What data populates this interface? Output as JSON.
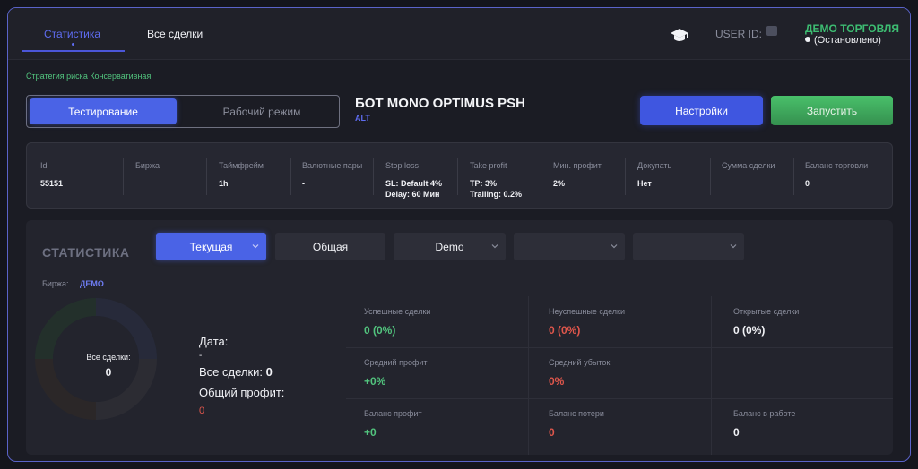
{
  "tabs": [
    {
      "label": "Статистика",
      "active": true
    },
    {
      "label": "Все сделки",
      "active": false
    }
  ],
  "header": {
    "user_id_label": "USER ID:",
    "account_title": "ДЕМО ТОРГОВЛЯ",
    "account_status": "(Остановлено)"
  },
  "strategy_text": "Стратегия риска Консервативная",
  "mode": {
    "testing": "Тестирование",
    "working": "Рабочий режим"
  },
  "bot": {
    "name": "БОТ MONO OPTIMUS PSH",
    "sub": "ALT"
  },
  "buttons": {
    "settings": "Настройки",
    "start": "Запустить"
  },
  "params": [
    {
      "label": "Id",
      "value": "55151"
    },
    {
      "label": "Биржа",
      "value": ""
    },
    {
      "label": "Таймфрейм",
      "value": "1h"
    },
    {
      "label": "Валютные пары",
      "value": "-"
    },
    {
      "label": "Stop loss",
      "value": "SL: Default 4%",
      "value2": "Delay:  60 Мин"
    },
    {
      "label": "Take profit",
      "value": "TP: 3%",
      "value2": "Trailing: 0.2%"
    },
    {
      "label": "Мин. профит",
      "value": "2%"
    },
    {
      "label": "Докупать",
      "value": "Нет"
    },
    {
      "label": "Сумма сделки",
      "value": ""
    },
    {
      "label": "Баланс торговли",
      "value": "0"
    }
  ],
  "stats": {
    "title": "СТАТИСТИКА",
    "selects": {
      "current": "Текущая",
      "general": "Общая",
      "exchange": "Demo"
    },
    "exchange_label": "Биржа:",
    "exchange_value": "ДЕМО",
    "donut": {
      "label": "Все сделки:",
      "value": "0"
    },
    "date_label": "Дата:",
    "date_value": "-",
    "all_deals_label": "Все сделки:",
    "all_deals_value": "0",
    "total_profit_label": "Общий профит:",
    "total_profit_value": "0",
    "cells": [
      {
        "label": "Успешные сделки",
        "value": "0 (0%)",
        "tone": "g"
      },
      {
        "label": "Неуспешные сделки",
        "value": "0 (0%)",
        "tone": "r"
      },
      {
        "label": "Открытые сделки",
        "value": "0 (0%)",
        "tone": "w"
      },
      {
        "label": "Средний профит",
        "value": "+0%",
        "tone": "g"
      },
      {
        "label": "Средний убыток",
        "value": "0%",
        "tone": "r"
      },
      {
        "label": "",
        "value": "",
        "tone": "w"
      },
      {
        "label": "Баланс профит",
        "value": "+0",
        "tone": "g"
      },
      {
        "label": "Баланс потери",
        "value": "0",
        "tone": "r"
      },
      {
        "label": "Баланс в работе",
        "value": "0",
        "tone": "w"
      }
    ]
  },
  "colors": {
    "accent": "#4a63e6",
    "success": "#52c47e",
    "danger": "#e1574c"
  }
}
